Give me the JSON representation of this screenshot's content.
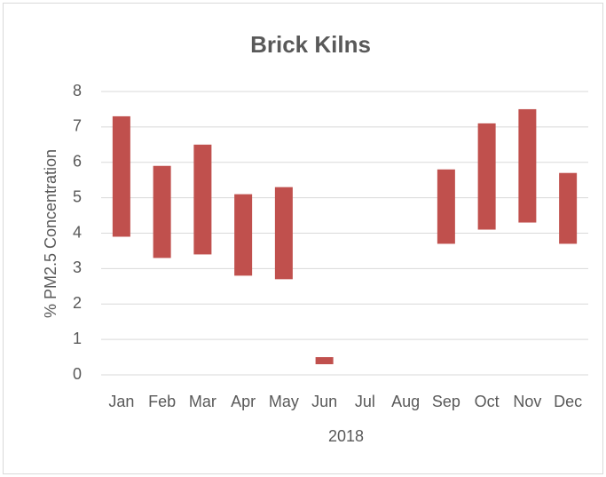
{
  "chart_data": {
    "type": "bar",
    "title": "Brick Kilns",
    "x_label": "2018",
    "y_label": "% PM2.5 Concentration",
    "categories": [
      "Jan",
      "Feb",
      "Mar",
      "Apr",
      "May",
      "Jun",
      "Jul",
      "Aug",
      "Sep",
      "Oct",
      "Nov",
      "Dec"
    ],
    "low": [
      3.9,
      3.3,
      3.4,
      2.8,
      2.7,
      0.3,
      null,
      null,
      3.7,
      4.1,
      4.3,
      3.7
    ],
    "high": [
      7.3,
      5.9,
      6.5,
      5.1,
      5.3,
      0.5,
      null,
      null,
      5.8,
      7.1,
      7.5,
      5.7
    ],
    "color": "#c0504d",
    "ylim": [
      0,
      8
    ],
    "yticks": [
      0,
      1,
      2,
      3,
      4,
      5,
      6,
      7,
      8
    ],
    "grid": true
  }
}
